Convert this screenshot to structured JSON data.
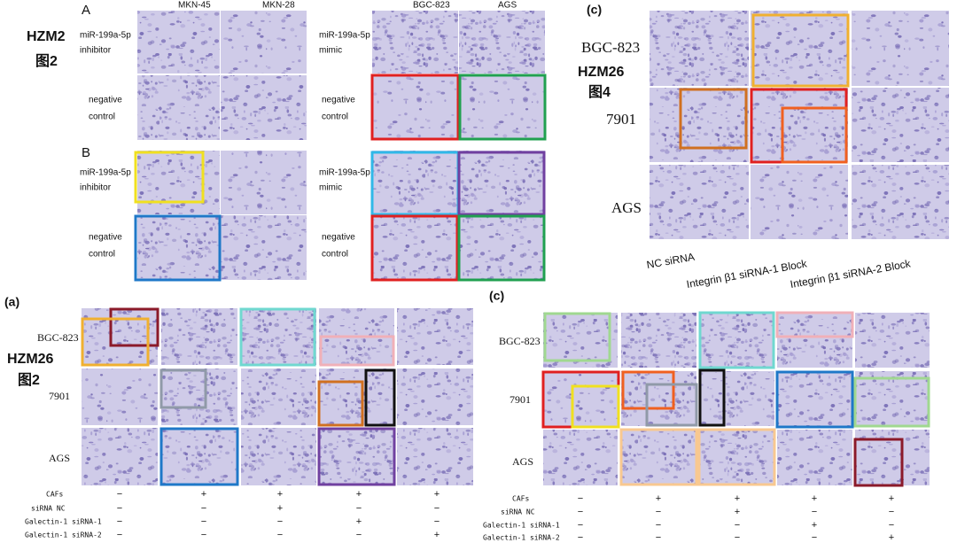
{
  "top_left": {
    "tag": [
      "HZM2",
      "图2"
    ],
    "panel_a": "A",
    "panel_b": "B",
    "columns": [
      "MKN-45",
      "MKN-28",
      "BGC-823",
      "AGS"
    ],
    "row_inhibitor": [
      "miR-199a-5p",
      "inhibitor"
    ],
    "row_mimic": [
      "miR-199a-5p",
      "mimic"
    ],
    "row_control": [
      "negative",
      "control"
    ]
  },
  "top_right": {
    "panel": "(c)",
    "tag": [
      "HZM26",
      "图4"
    ],
    "rows": [
      "BGC-823",
      "7901",
      "AGS"
    ],
    "columns": [
      "NC siRNA",
      "Integrin β1 siRNA-1 Block",
      "Integrin β1 siRNA-2 Block"
    ]
  },
  "bottom_left": {
    "panel": "(a)",
    "tag": [
      "HZM26",
      "图2"
    ],
    "rows": [
      "BGC-823",
      "7901",
      "AGS"
    ],
    "conditions": [
      {
        "label": "CAFs",
        "marks": [
          "−",
          "+",
          "+",
          "+",
          "+"
        ]
      },
      {
        "label": "siRNA NC",
        "marks": [
          "−",
          "−",
          "+",
          "−",
          "−"
        ]
      },
      {
        "label": "Galectin-1 siRNA-1",
        "marks": [
          "−",
          "−",
          "−",
          "+",
          "−"
        ]
      },
      {
        "label": "Galectin-1 siRNA-2",
        "marks": [
          "−",
          "−",
          "−",
          "−",
          "+"
        ]
      }
    ]
  },
  "bottom_right": {
    "panel": "(c)",
    "rows": [
      "BGC-823",
      "7901",
      "AGS"
    ],
    "conditions": [
      {
        "label": "CAFs",
        "marks": [
          "−",
          "+",
          "+",
          "+",
          "+"
        ]
      },
      {
        "label": "siRNA NC",
        "marks": [
          "−",
          "−",
          "+",
          "−",
          "−"
        ]
      },
      {
        "label": "Galectin-1 siRNA-1",
        "marks": [
          "−",
          "−",
          "−",
          "+",
          "−"
        ]
      },
      {
        "label": "Galectin-1 siRNA-2",
        "marks": [
          "−",
          "−",
          "−",
          "−",
          "+"
        ]
      }
    ]
  }
}
